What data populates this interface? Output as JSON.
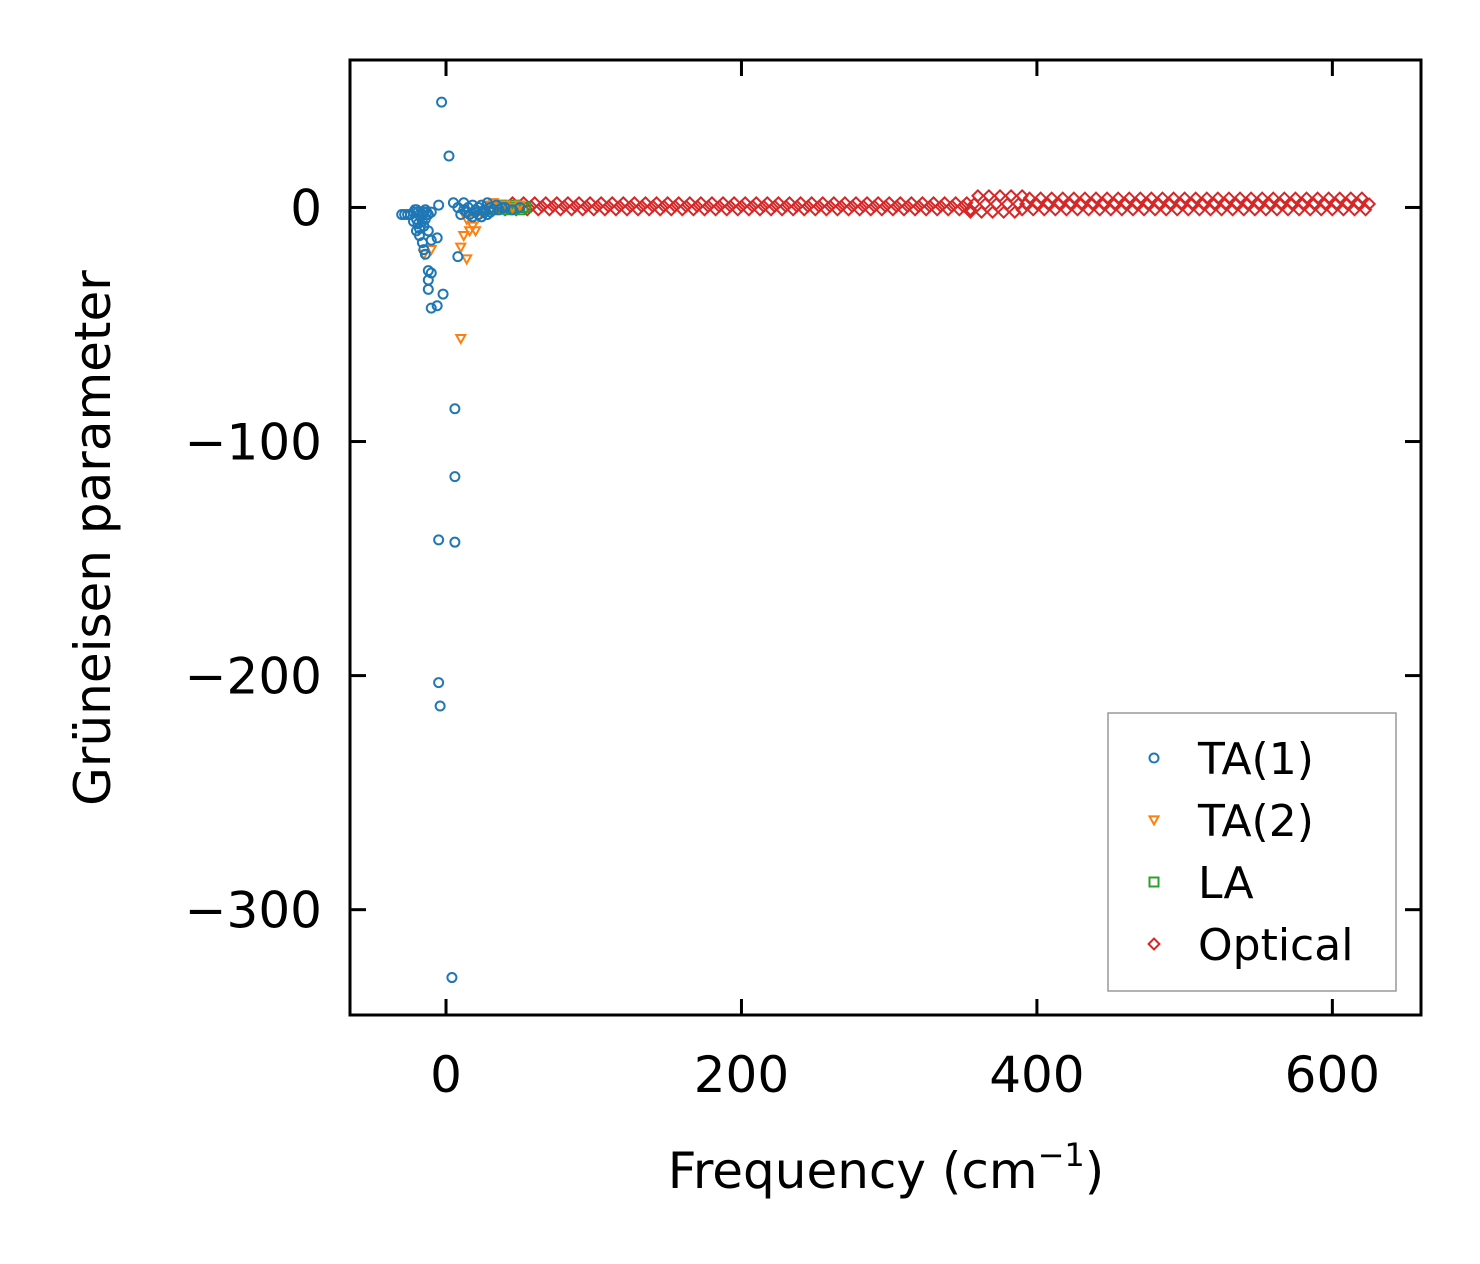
{
  "chart_data": {
    "type": "scatter",
    "xlabel": "Frequency (cm",
    "xlabel_sup": "−1",
    "xlabel_close": ")",
    "ylabel": "Grüneisen parameter",
    "xlim": [
      -65,
      660
    ],
    "ylim": [
      -345,
      63
    ],
    "xticks": [
      0,
      200,
      400,
      600
    ],
    "xtick_labels": [
      "0",
      "200",
      "400",
      "600"
    ],
    "yticks": [
      0,
      -100,
      -200,
      -300
    ],
    "ytick_labels": [
      "0",
      "−100",
      "−200",
      "−300"
    ],
    "grid": false,
    "legend_position": "lower-right",
    "series": [
      {
        "name": "TA(1)",
        "marker": "circle",
        "color": "#1f77b4",
        "points": [
          [
            -3,
            45
          ],
          [
            2,
            22
          ],
          [
            -5,
            1
          ],
          [
            5,
            2
          ],
          [
            8,
            0
          ],
          [
            12,
            2
          ],
          [
            15,
            0
          ],
          [
            18,
            1
          ],
          [
            20,
            -1
          ],
          [
            22,
            0
          ],
          [
            24,
            1
          ],
          [
            26,
            -1
          ],
          [
            28,
            2
          ],
          [
            30,
            0
          ],
          [
            32,
            -1
          ],
          [
            34,
            1
          ],
          [
            36,
            -1
          ],
          [
            38,
            0
          ],
          [
            40,
            0
          ],
          [
            45,
            -1
          ],
          [
            50,
            0
          ],
          [
            -30,
            -3
          ],
          [
            -28,
            -3
          ],
          [
            -26,
            -3
          ],
          [
            -24,
            -3
          ],
          [
            -22,
            -2
          ],
          [
            -21,
            -1
          ],
          [
            -20,
            -1
          ],
          [
            -19,
            -2
          ],
          [
            -18,
            -3
          ],
          [
            -17,
            -4
          ],
          [
            -16,
            -3
          ],
          [
            -15,
            -2
          ],
          [
            -14,
            -1
          ],
          [
            -13,
            -2
          ],
          [
            -12,
            -3
          ],
          [
            -20,
            -5
          ],
          [
            -19,
            -7
          ],
          [
            -18,
            -9
          ],
          [
            -16,
            -6
          ],
          [
            -15,
            -8
          ],
          [
            -14,
            -5
          ],
          [
            -22,
            -6
          ],
          [
            -20,
            -10
          ],
          [
            -18,
            -12
          ],
          [
            -16,
            -15
          ],
          [
            -15,
            -18
          ],
          [
            -14,
            -20
          ],
          [
            -12,
            -10
          ],
          [
            -10,
            -2
          ],
          [
            -10,
            -14
          ],
          [
            -6,
            -13
          ],
          [
            -12,
            -27
          ],
          [
            -10,
            -28
          ],
          [
            -12,
            -31
          ],
          [
            -12,
            -35
          ],
          [
            -2,
            -37
          ],
          [
            -10,
            -43
          ],
          [
            -6,
            -42
          ],
          [
            8,
            -21
          ],
          [
            10,
            -3
          ],
          [
            12,
            -1
          ],
          [
            14,
            -2
          ],
          [
            16,
            -3
          ],
          [
            18,
            -4
          ],
          [
            20,
            -2
          ],
          [
            22,
            -3
          ],
          [
            24,
            -4
          ],
          [
            26,
            -2
          ],
          [
            28,
            -3
          ],
          [
            30,
            -2
          ],
          [
            6,
            -86
          ],
          [
            6,
            -115
          ],
          [
            -5,
            -142
          ],
          [
            6,
            -143
          ],
          [
            -5,
            -203
          ],
          [
            -4,
            -213
          ],
          [
            4,
            -329
          ]
        ]
      },
      {
        "name": "TA(2)",
        "marker": "triangle-down",
        "color": "#ff7f0e",
        "points": [
          [
            -15,
            -20
          ],
          [
            -10,
            -18
          ],
          [
            10,
            -56
          ],
          [
            10,
            -17
          ],
          [
            12,
            -12
          ],
          [
            14,
            -22
          ],
          [
            16,
            -10
          ],
          [
            18,
            -8
          ],
          [
            20,
            -10
          ],
          [
            14,
            -5
          ],
          [
            22,
            -4
          ],
          [
            25,
            -2
          ],
          [
            28,
            -1
          ],
          [
            30,
            1
          ],
          [
            32,
            2
          ],
          [
            35,
            0
          ],
          [
            40,
            1
          ],
          [
            45,
            0
          ],
          [
            50,
            1
          ]
        ]
      },
      {
        "name": "LA",
        "marker": "square",
        "color": "#2ca02c",
        "points": [
          [
            30,
            0
          ],
          [
            32,
            -1
          ],
          [
            35,
            0
          ],
          [
            38,
            1
          ],
          [
            40,
            0
          ],
          [
            42,
            -1
          ],
          [
            44,
            0
          ],
          [
            46,
            1
          ],
          [
            48,
            0
          ],
          [
            50,
            -1
          ],
          [
            52,
            0
          ],
          [
            54,
            0
          ]
        ]
      },
      {
        "name": "Optical",
        "marker": "diamond",
        "color": "#d62728",
        "band": {
          "x_start": 40,
          "x_end": 625,
          "x_step": 2.5,
          "segments": [
            {
              "x_from": 40,
              "x_to": 355,
              "y_low": -1,
              "y_high": 2
            },
            {
              "x_from": 355,
              "x_to": 390,
              "y_low": -2,
              "y_high": 5
            },
            {
              "x_from": 390,
              "x_to": 625,
              "y_low": -1,
              "y_high": 4
            }
          ]
        }
      }
    ]
  }
}
